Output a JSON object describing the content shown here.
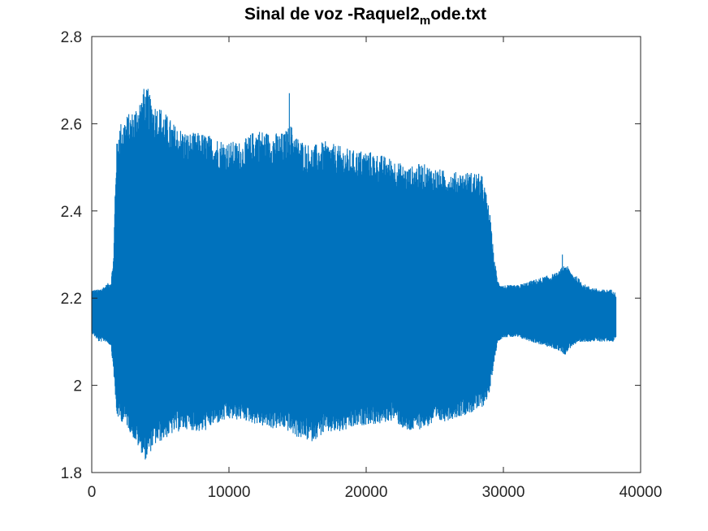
{
  "chart_data": {
    "type": "line",
    "title_main": "Sinal de voz -Raquel2",
    "title_subscript": "m",
    "title_suffix": "ode.txt",
    "xlabel": "",
    "ylabel": "",
    "xlim": [
      0,
      40000
    ],
    "ylim": [
      1.8,
      2.8
    ],
    "xticks": [
      0,
      10000,
      20000,
      30000,
      40000
    ],
    "xtick_labels": [
      "0",
      "10000",
      "20000",
      "30000",
      "40000"
    ],
    "yticks": [
      1.8,
      2.0,
      2.2,
      2.4,
      2.6,
      2.8
    ],
    "ytick_labels": [
      "1.8",
      "2",
      "2.2",
      "2.4",
      "2.6",
      "2.8"
    ],
    "grid": false,
    "series_color": "#0072BD",
    "n_samples": 38200,
    "baseline": 2.16,
    "envelope_x": [
      0,
      500,
      1000,
      1400,
      1600,
      1700,
      1800,
      2000,
      2500,
      3000,
      3500,
      4000,
      4500,
      5000,
      5500,
      6000,
      7000,
      8000,
      9000,
      10000,
      11000,
      12000,
      13000,
      14000,
      14500,
      15000,
      16000,
      17000,
      18000,
      19000,
      20000,
      21000,
      22000,
      23000,
      24000,
      25000,
      26000,
      27000,
      28000,
      28500,
      29000,
      29300,
      29600,
      30000,
      31000,
      32000,
      33000,
      34000,
      34500,
      35000,
      36000,
      37000,
      38000,
      38200
    ],
    "envelope_upper": [
      2.22,
      2.22,
      2.23,
      2.24,
      2.3,
      2.45,
      2.55,
      2.6,
      2.62,
      2.63,
      2.66,
      2.68,
      2.65,
      2.64,
      2.62,
      2.6,
      2.58,
      2.58,
      2.57,
      2.56,
      2.56,
      2.59,
      2.58,
      2.58,
      2.6,
      2.57,
      2.55,
      2.56,
      2.55,
      2.54,
      2.54,
      2.53,
      2.52,
      2.5,
      2.51,
      2.5,
      2.49,
      2.49,
      2.49,
      2.48,
      2.4,
      2.3,
      2.24,
      2.23,
      2.23,
      2.24,
      2.25,
      2.26,
      2.28,
      2.26,
      2.23,
      2.22,
      2.22,
      2.21
    ],
    "envelope_lower": [
      2.12,
      2.1,
      2.1,
      2.09,
      2.03,
      1.98,
      1.93,
      1.92,
      1.91,
      1.88,
      1.85,
      1.83,
      1.86,
      1.87,
      1.88,
      1.89,
      1.9,
      1.89,
      1.91,
      1.92,
      1.92,
      1.91,
      1.9,
      1.9,
      1.89,
      1.88,
      1.87,
      1.89,
      1.89,
      1.9,
      1.91,
      1.91,
      1.92,
      1.89,
      1.9,
      1.91,
      1.92,
      1.93,
      1.94,
      1.95,
      1.98,
      2.05,
      2.1,
      2.11,
      2.11,
      2.1,
      2.09,
      2.08,
      2.07,
      2.09,
      2.1,
      2.1,
      2.1,
      2.11
    ],
    "peak_spikes": [
      {
        "x": 14400,
        "y": 2.67
      },
      {
        "x": 3800,
        "y": 2.68
      },
      {
        "x": 4100,
        "y": 2.68
      },
      {
        "x": 34300,
        "y": 2.3
      },
      {
        "x": 3900,
        "y": 1.83
      }
    ]
  }
}
